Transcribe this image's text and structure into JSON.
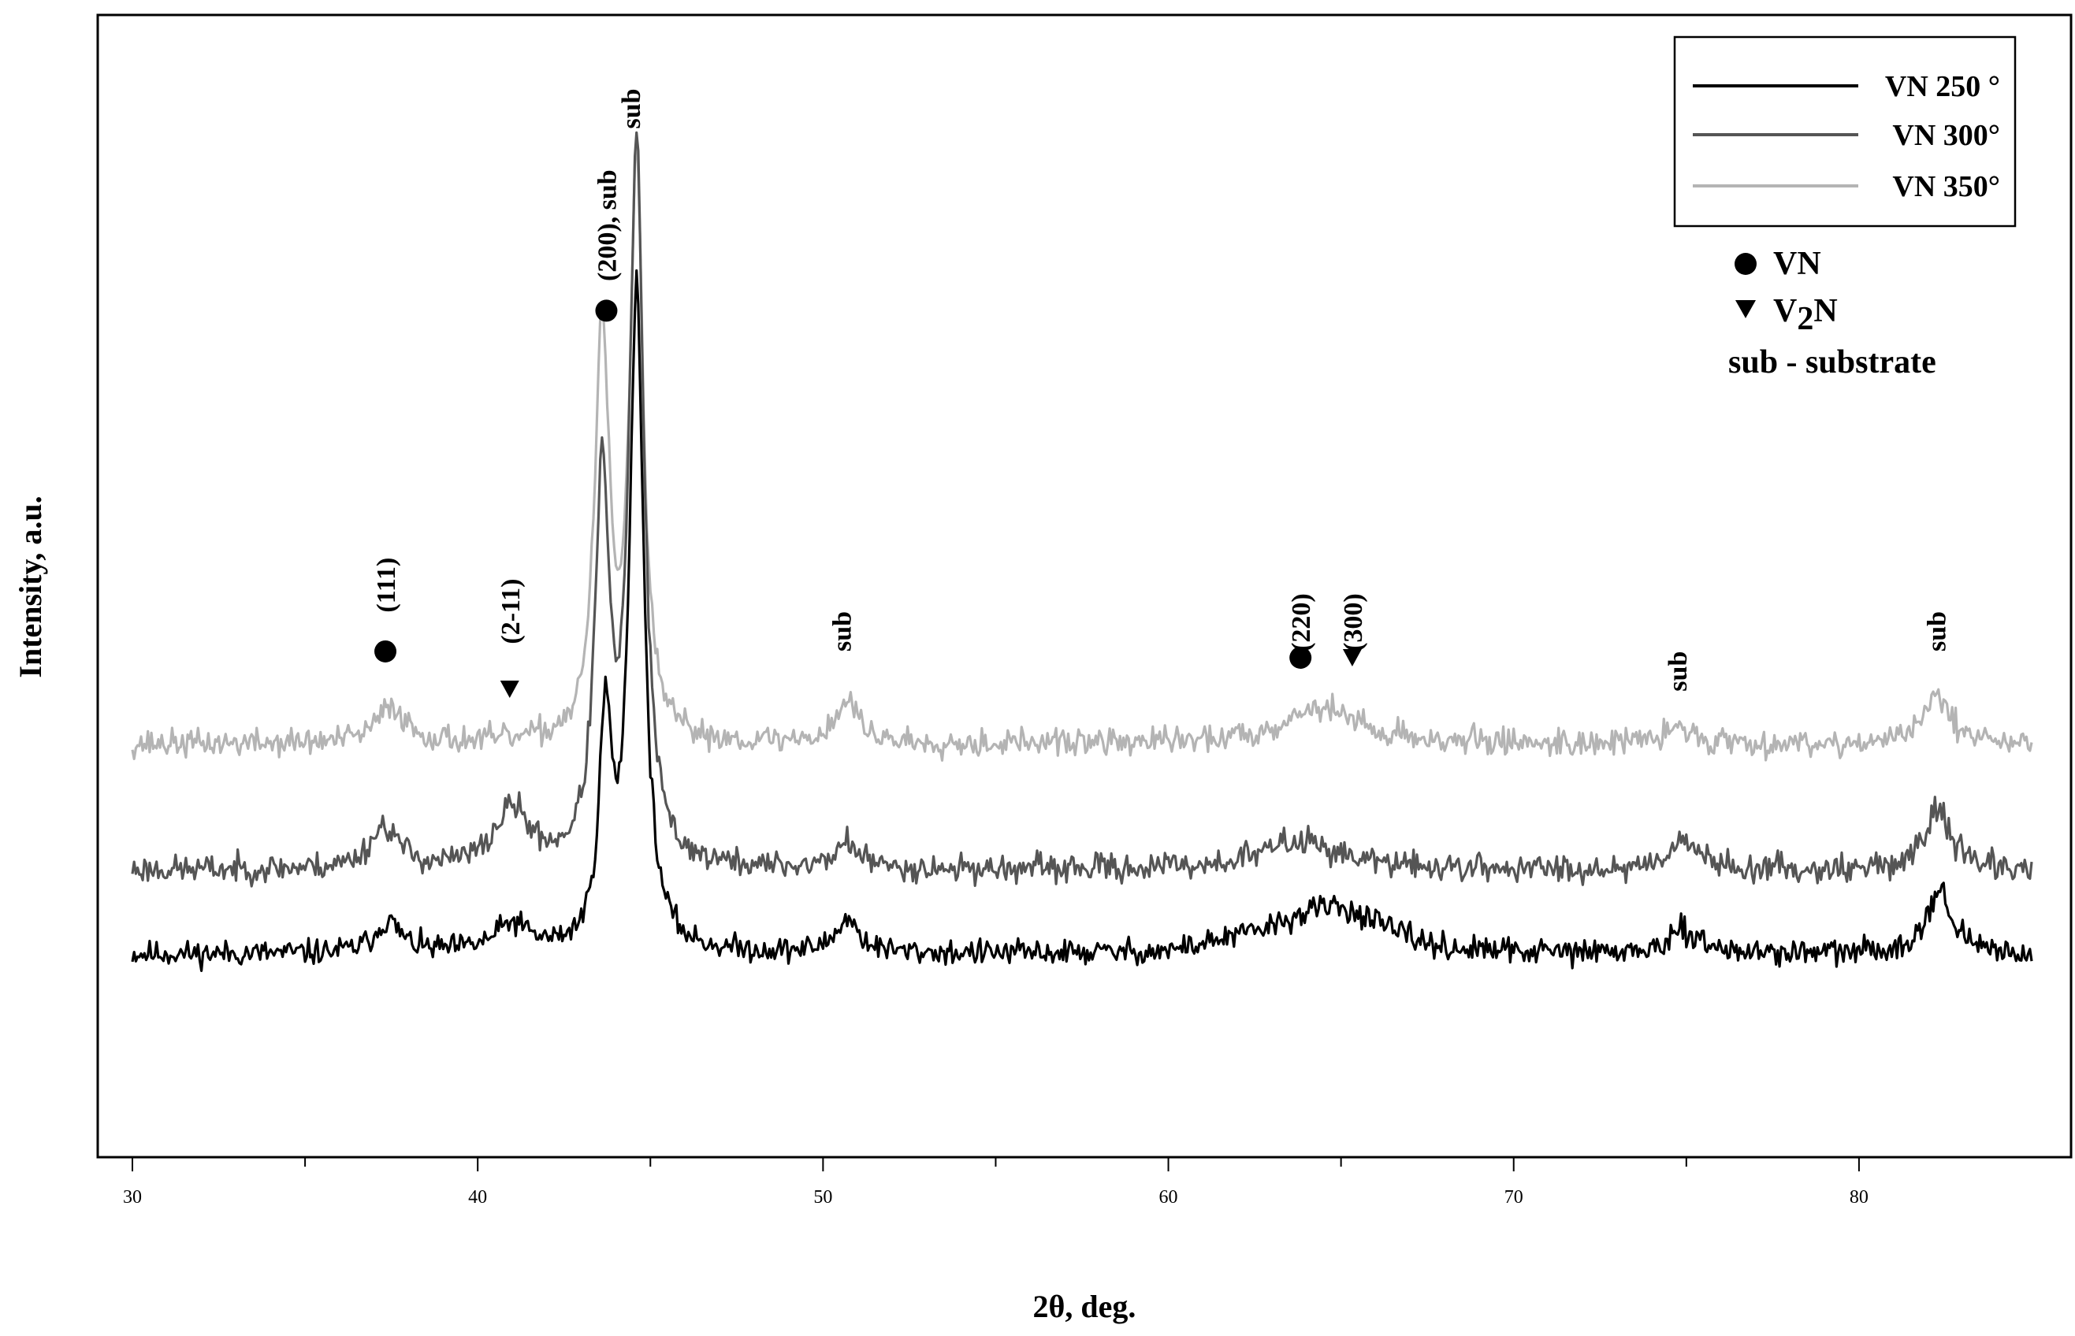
{
  "chart_data": {
    "type": "line",
    "xlabel": "2θ, deg.",
    "ylabel": "Intensity, a.u.",
    "xlim": [
      30,
      85
    ],
    "x_ticks": [
      30,
      40,
      50,
      60,
      70,
      80
    ],
    "x_tick_labels": [
      "30",
      "40",
      "50",
      "60",
      "70",
      "80"
    ],
    "x_minor_ticks": [
      35,
      45,
      55,
      65,
      75
    ],
    "ylim": [
      0,
      100
    ],
    "grid": false,
    "legend_position": "top-right",
    "legend": [
      {
        "label": "VN 250 °",
        "color": "#000000"
      },
      {
        "label": "VN 300°",
        "color": "#555555"
      },
      {
        "label": "VN 350°",
        "color": "#b4b4b4"
      }
    ],
    "phase_key": [
      {
        "symbol": "circle",
        "label": "VN"
      },
      {
        "symbol": "triangle",
        "label_main": "V",
        "label_sub": "2",
        "label_end": "N"
      },
      {
        "symbol": "none",
        "label": "sub - substrate"
      }
    ],
    "series": [
      {
        "name": "VN 250 °",
        "color": "#000000",
        "baseline": 13.0,
        "noise": 1.2,
        "seed": 11,
        "peaks": [
          {
            "x": 37.4,
            "h": 3.0,
            "w": 0.45
          },
          {
            "x": 41.0,
            "h": 2.6,
            "w": 0.6
          },
          {
            "x": 43.7,
            "h": 21.0,
            "w": 0.22
          },
          {
            "x": 44.6,
            "h": 63.0,
            "w": 0.25
          },
          {
            "x": 50.7,
            "h": 3.2,
            "w": 0.4
          },
          {
            "x": 64.8,
            "h": 3.2,
            "w": 1.6
          },
          {
            "x": 75.0,
            "h": 2.2,
            "w": 0.5
          },
          {
            "x": 82.3,
            "h": 6.0,
            "w": 0.45
          }
        ],
        "slopes": [
          {
            "from": 60,
            "to": 68,
            "h": 1.4
          }
        ]
      },
      {
        "name": "VN 300°",
        "color": "#555555",
        "baseline": 21.0,
        "noise": 1.3,
        "seed": 23,
        "peaks": [
          {
            "x": 37.3,
            "h": 4.0,
            "w": 0.5
          },
          {
            "x": 41.0,
            "h": 5.5,
            "w": 0.6
          },
          {
            "x": 43.6,
            "h": 36.0,
            "w": 0.25
          },
          {
            "x": 44.6,
            "h": 68.0,
            "w": 0.25
          },
          {
            "x": 50.7,
            "h": 2.5,
            "w": 0.4
          },
          {
            "x": 63.8,
            "h": 2.8,
            "w": 1.4
          },
          {
            "x": 74.9,
            "h": 3.0,
            "w": 0.5
          },
          {
            "x": 82.3,
            "h": 5.8,
            "w": 0.45
          }
        ],
        "slopes": []
      },
      {
        "name": "VN 350°",
        "color": "#b4b4b4",
        "baseline": 33.0,
        "noise": 1.3,
        "seed": 37,
        "peaks": [
          {
            "x": 37.5,
            "h": 3.5,
            "w": 0.5
          },
          {
            "x": 43.6,
            "h": 39.0,
            "w": 0.25
          },
          {
            "x": 44.6,
            "h": 56.0,
            "w": 0.22
          },
          {
            "x": 50.7,
            "h": 4.0,
            "w": 0.4
          },
          {
            "x": 64.4,
            "h": 3.5,
            "w": 1.3
          },
          {
            "x": 74.8,
            "h": 1.5,
            "w": 0.5
          },
          {
            "x": 82.3,
            "h": 4.8,
            "w": 0.45
          }
        ],
        "slopes": []
      }
    ],
    "annotations": [
      {
        "text": "(111)",
        "x": 37.6,
        "y": 45.5,
        "marker": "circle",
        "marker_y": 41.8
      },
      {
        "text": "(2-11)",
        "x": 41.2,
        "y": 42.5,
        "marker": "triangle",
        "marker_y": 38.2
      },
      {
        "text": "(200), sub",
        "x": 44.0,
        "y": 77.0,
        "marker": "circle",
        "marker_y": 74.2
      },
      {
        "text": "sub",
        "x": 44.7,
        "y": 91.5,
        "marker": "none"
      },
      {
        "text": "sub",
        "x": 50.8,
        "y": 41.8,
        "marker": "none"
      },
      {
        "text": "(220)",
        "x": 64.1,
        "y": 41.8,
        "marker": "circle",
        "marker_y": 41.2
      },
      {
        "text": "(300)",
        "x": 65.6,
        "y": 41.8,
        "marker": "triangle",
        "marker_y": 41.2
      },
      {
        "text": "sub",
        "x": 75.0,
        "y": 38.0,
        "marker": "none"
      },
      {
        "text": "sub",
        "x": 82.5,
        "y": 41.8,
        "marker": "none"
      }
    ]
  }
}
